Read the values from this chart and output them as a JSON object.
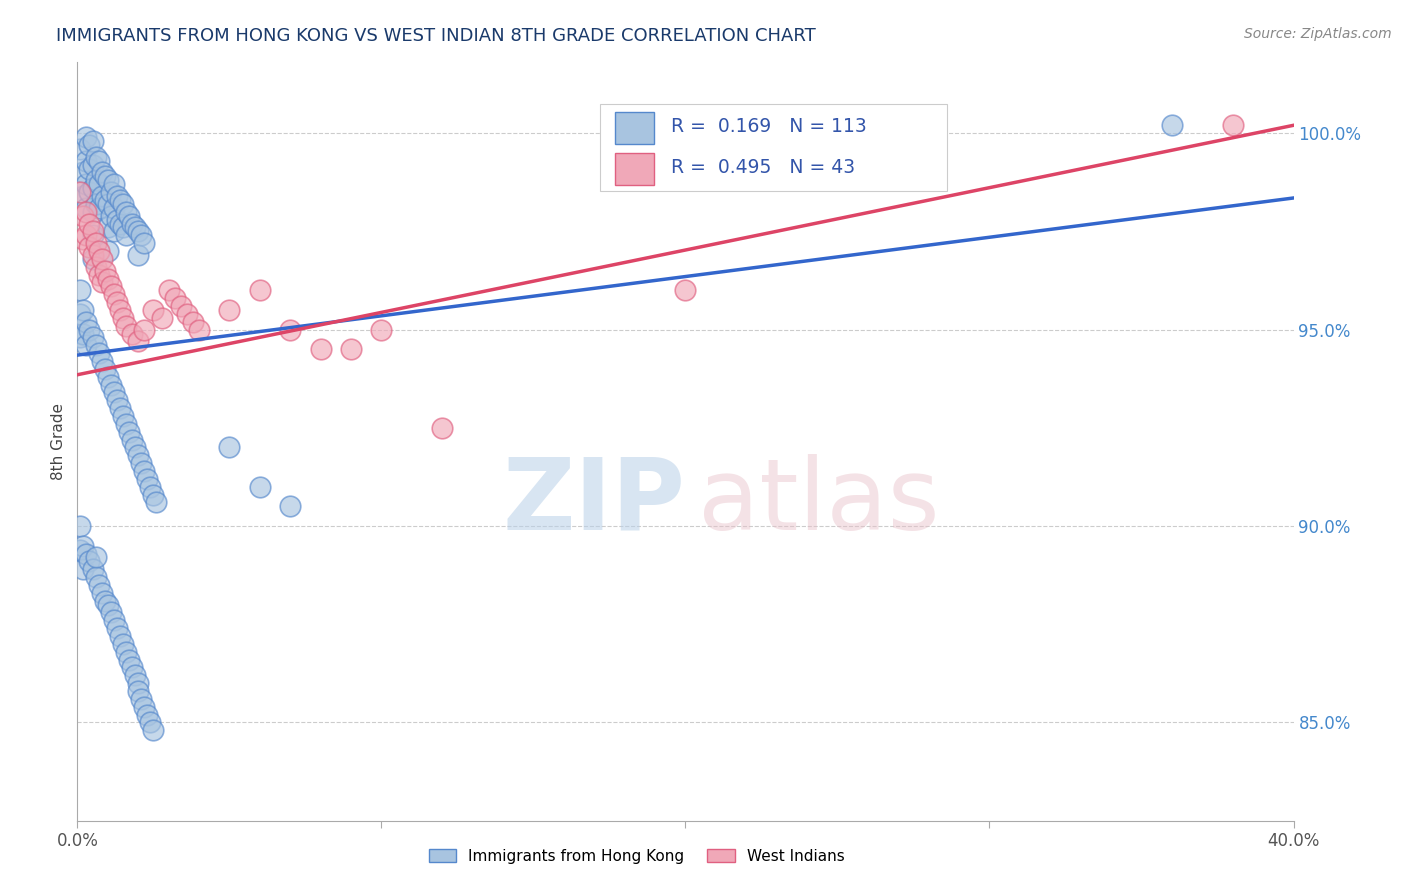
{
  "title": "IMMIGRANTS FROM HONG KONG VS WEST INDIAN 8TH GRADE CORRELATION CHART",
  "source": "Source: ZipAtlas.com",
  "ylabel": "8th Grade",
  "yaxis_labels": [
    "100.0%",
    "95.0%",
    "90.0%",
    "85.0%"
  ],
  "yaxis_values": [
    1.0,
    0.95,
    0.9,
    0.85
  ],
  "xlim": [
    0.0,
    0.4
  ],
  "ylim": [
    0.825,
    1.018
  ],
  "hk_R": 0.169,
  "hk_N": 113,
  "wi_R": 0.495,
  "wi_N": 43,
  "hk_color": "#a8c4e0",
  "wi_color": "#f0a8b8",
  "hk_edge_color": "#5588cc",
  "wi_edge_color": "#e06080",
  "hk_line_color": "#3366cc",
  "wi_line_color": "#dd4466",
  "legend_color": "#3355aa",
  "title_color": "#1a3a6b",
  "source_color": "#888888",
  "background_color": "#ffffff",
  "grid_color": "#cccccc",
  "ytick_color": "#4488cc",
  "xtick_color": "#555555",
  "hk_line_y0": 0.9435,
  "hk_line_y1": 0.9835,
  "wi_line_y0": 0.9385,
  "wi_line_y1": 1.002,
  "hk_x": [
    0.001,
    0.002,
    0.002,
    0.003,
    0.003,
    0.003,
    0.003,
    0.004,
    0.004,
    0.004,
    0.005,
    0.005,
    0.005,
    0.005,
    0.005,
    0.005,
    0.006,
    0.006,
    0.006,
    0.007,
    0.007,
    0.007,
    0.008,
    0.008,
    0.009,
    0.009,
    0.01,
    0.01,
    0.01,
    0.01,
    0.011,
    0.011,
    0.012,
    0.012,
    0.012,
    0.013,
    0.013,
    0.014,
    0.014,
    0.015,
    0.015,
    0.016,
    0.016,
    0.017,
    0.018,
    0.019,
    0.02,
    0.02,
    0.021,
    0.022,
    0.001,
    0.001,
    0.001,
    0.002,
    0.002,
    0.003,
    0.003,
    0.004,
    0.005,
    0.006,
    0.007,
    0.008,
    0.009,
    0.01,
    0.011,
    0.012,
    0.013,
    0.014,
    0.015,
    0.016,
    0.017,
    0.018,
    0.019,
    0.02,
    0.021,
    0.022,
    0.023,
    0.024,
    0.025,
    0.026,
    0.001,
    0.001,
    0.002,
    0.002,
    0.003,
    0.004,
    0.005,
    0.006,
    0.006,
    0.007,
    0.008,
    0.009,
    0.01,
    0.011,
    0.012,
    0.013,
    0.014,
    0.015,
    0.016,
    0.017,
    0.018,
    0.019,
    0.02,
    0.02,
    0.021,
    0.022,
    0.023,
    0.024,
    0.025,
    0.05,
    0.06,
    0.07,
    0.36
  ],
  "hk_y": [
    0.996,
    0.99,
    0.984,
    0.999,
    0.993,
    0.987,
    0.981,
    0.997,
    0.991,
    0.985,
    0.998,
    0.992,
    0.986,
    0.98,
    0.974,
    0.968,
    0.994,
    0.988,
    0.982,
    0.993,
    0.987,
    0.981,
    0.99,
    0.984,
    0.989,
    0.983,
    0.988,
    0.982,
    0.976,
    0.97,
    0.985,
    0.979,
    0.987,
    0.981,
    0.975,
    0.984,
    0.978,
    0.983,
    0.977,
    0.982,
    0.976,
    0.98,
    0.974,
    0.979,
    0.977,
    0.976,
    0.975,
    0.969,
    0.974,
    0.972,
    0.96,
    0.954,
    0.948,
    0.955,
    0.949,
    0.952,
    0.946,
    0.95,
    0.948,
    0.946,
    0.944,
    0.942,
    0.94,
    0.938,
    0.936,
    0.934,
    0.932,
    0.93,
    0.928,
    0.926,
    0.924,
    0.922,
    0.92,
    0.918,
    0.916,
    0.914,
    0.912,
    0.91,
    0.908,
    0.906,
    0.9,
    0.894,
    0.895,
    0.889,
    0.893,
    0.891,
    0.889,
    0.887,
    0.892,
    0.885,
    0.883,
    0.881,
    0.88,
    0.878,
    0.876,
    0.874,
    0.872,
    0.87,
    0.868,
    0.866,
    0.864,
    0.862,
    0.86,
    0.858,
    0.856,
    0.854,
    0.852,
    0.85,
    0.848,
    0.92,
    0.91,
    0.905,
    1.002
  ],
  "wi_x": [
    0.001,
    0.002,
    0.002,
    0.003,
    0.003,
    0.004,
    0.004,
    0.005,
    0.005,
    0.006,
    0.006,
    0.007,
    0.007,
    0.008,
    0.008,
    0.009,
    0.01,
    0.011,
    0.012,
    0.013,
    0.014,
    0.015,
    0.016,
    0.018,
    0.02,
    0.022,
    0.025,
    0.028,
    0.03,
    0.032,
    0.034,
    0.036,
    0.038,
    0.04,
    0.05,
    0.06,
    0.07,
    0.08,
    0.09,
    0.1,
    0.12,
    0.2,
    0.38
  ],
  "wi_y": [
    0.985,
    0.979,
    0.973,
    0.98,
    0.974,
    0.977,
    0.971,
    0.975,
    0.969,
    0.972,
    0.966,
    0.97,
    0.964,
    0.968,
    0.962,
    0.965,
    0.963,
    0.961,
    0.959,
    0.957,
    0.955,
    0.953,
    0.951,
    0.949,
    0.947,
    0.95,
    0.955,
    0.953,
    0.96,
    0.958,
    0.956,
    0.954,
    0.952,
    0.95,
    0.955,
    0.96,
    0.95,
    0.945,
    0.945,
    0.95,
    0.925,
    0.96,
    1.002
  ]
}
